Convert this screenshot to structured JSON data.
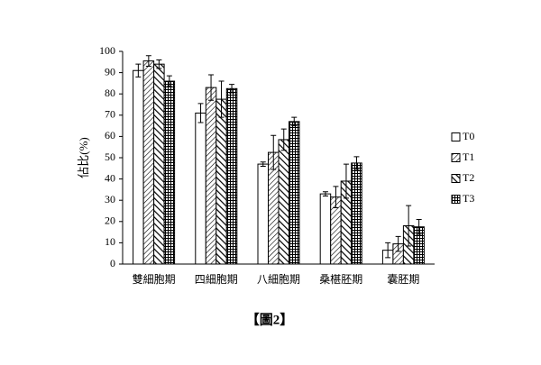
{
  "chart_data": {
    "type": "bar",
    "ylabel": "佔比(%)",
    "caption": "【圖2】",
    "categories": [
      "雙細胞期",
      "四細胞期",
      "八細胞期",
      "桑椹胚期",
      "囊胚期"
    ],
    "series": [
      {
        "name": "T0",
        "fill": "none",
        "values": [
          91,
          71,
          47,
          33,
          6.5
        ],
        "errors": [
          3,
          4.5,
          1,
          1,
          3.5
        ]
      },
      {
        "name": "T1",
        "fill": "hatch-right",
        "values": [
          95.5,
          83,
          52.5,
          31.5,
          9.5
        ],
        "errors": [
          2.5,
          6,
          8,
          5,
          3.5
        ]
      },
      {
        "name": "T2",
        "fill": "hatch-left",
        "values": [
          94,
          77.5,
          58.5,
          39,
          18
        ],
        "errors": [
          2,
          8.5,
          5,
          8,
          9.5
        ]
      },
      {
        "name": "T3",
        "fill": "grid",
        "values": [
          86,
          82.5,
          67,
          47.5,
          17.5
        ],
        "errors": [
          2.5,
          2,
          2,
          3,
          3.5
        ]
      }
    ],
    "ylim": [
      0,
      100
    ],
    "yticks": [
      0,
      10,
      20,
      30,
      40,
      50,
      60,
      70,
      80,
      90,
      100
    ]
  }
}
